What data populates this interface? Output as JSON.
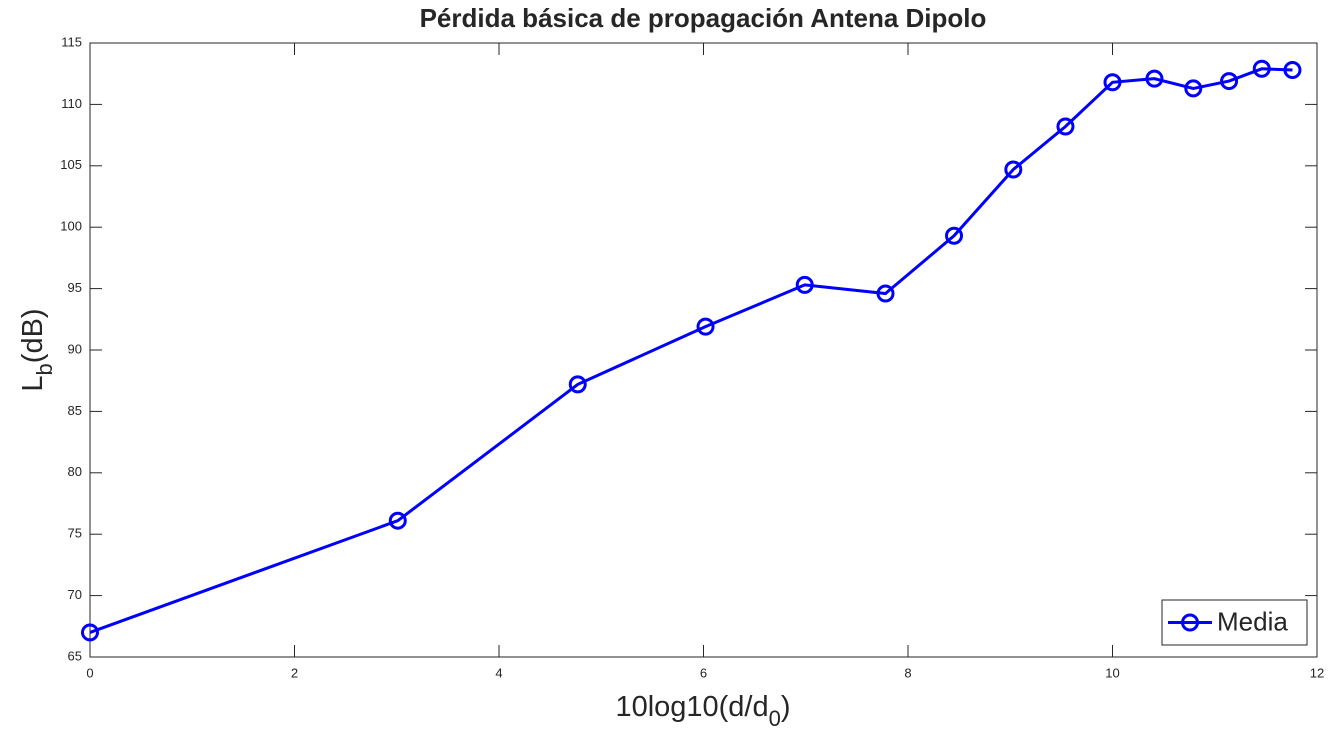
{
  "chart_data": {
    "type": "line",
    "title": "Pérdida básica de  propagación Antena Dipolo",
    "xlabel": [
      "10log10(d/d",
      "0",
      ")"
    ],
    "ylabel": [
      "L",
      "b",
      "(dB)"
    ],
    "x": [
      0,
      3.01,
      4.77,
      6.02,
      6.99,
      7.78,
      8.45,
      9.03,
      9.54,
      10,
      10.41,
      10.79,
      11.14,
      11.46,
      11.76
    ],
    "series": [
      {
        "name": "Media",
        "color": "#0000ff",
        "values": [
          67.0,
          76.1,
          87.2,
          91.9,
          95.3,
          94.6,
          99.3,
          104.7,
          108.2,
          111.8,
          112.1,
          111.3,
          111.9,
          112.9,
          112.8
        ]
      }
    ],
    "xlim": [
      0,
      12
    ],
    "xticks": [
      0,
      2,
      4,
      6,
      8,
      10,
      12
    ],
    "ylim": [
      65,
      115
    ],
    "yticks": [
      65,
      70,
      75,
      80,
      85,
      90,
      95,
      100,
      105,
      110,
      115
    ],
    "grid": false,
    "legend": "southeast",
    "marker": "circle"
  }
}
